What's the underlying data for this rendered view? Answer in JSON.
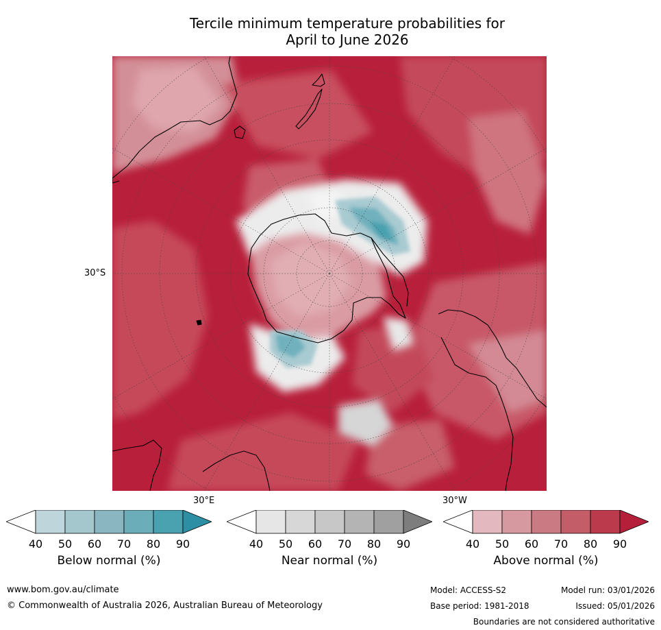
{
  "title": {
    "line1": "Tercile minimum temperature probabilities for",
    "line2": "April to June 2026"
  },
  "map": {
    "projection": "south-polar-stereographic",
    "lat_label": "30°S",
    "lon_label_east": "30°E",
    "lon_label_west": "30°W"
  },
  "colorbars": [
    {
      "title": "Below normal (%)",
      "ticks": [
        "40",
        "50",
        "60",
        "70",
        "80",
        "90"
      ],
      "colors": [
        "#ffffff",
        "#bdd5db",
        "#a4c6cd",
        "#8ab6c1",
        "#6baeb9",
        "#4aa1b0",
        "#2d8fa3"
      ]
    },
    {
      "title": "Near normal (%)",
      "ticks": [
        "40",
        "50",
        "60",
        "70",
        "80",
        "90"
      ],
      "colors": [
        "#ffffff",
        "#e6e6e6",
        "#d7d7d7",
        "#c7c7c7",
        "#b4b4b4",
        "#a0a0a0",
        "#7d7d7d"
      ]
    },
    {
      "title": "Above normal (%)",
      "ticks": [
        "40",
        "50",
        "60",
        "70",
        "80",
        "90"
      ],
      "colors": [
        "#ffffff",
        "#e3b8be",
        "#d6999f",
        "#ca7a82",
        "#c35d68",
        "#bb3a4c",
        "#b51f3a"
      ]
    }
  ],
  "footer": {
    "website": "www.bom.gov.au/climate",
    "copyright": "© Commonwealth of Australia 2026, Australian Bureau of Meteorology",
    "model": "Model: ACCESS-S2",
    "base_period": "Base period: 1981-2018",
    "model_run": "Model run: 03/01/2026",
    "issued": "Issued: 05/01/2026",
    "disclaimer": "Boundaries are not considered authoritative"
  }
}
